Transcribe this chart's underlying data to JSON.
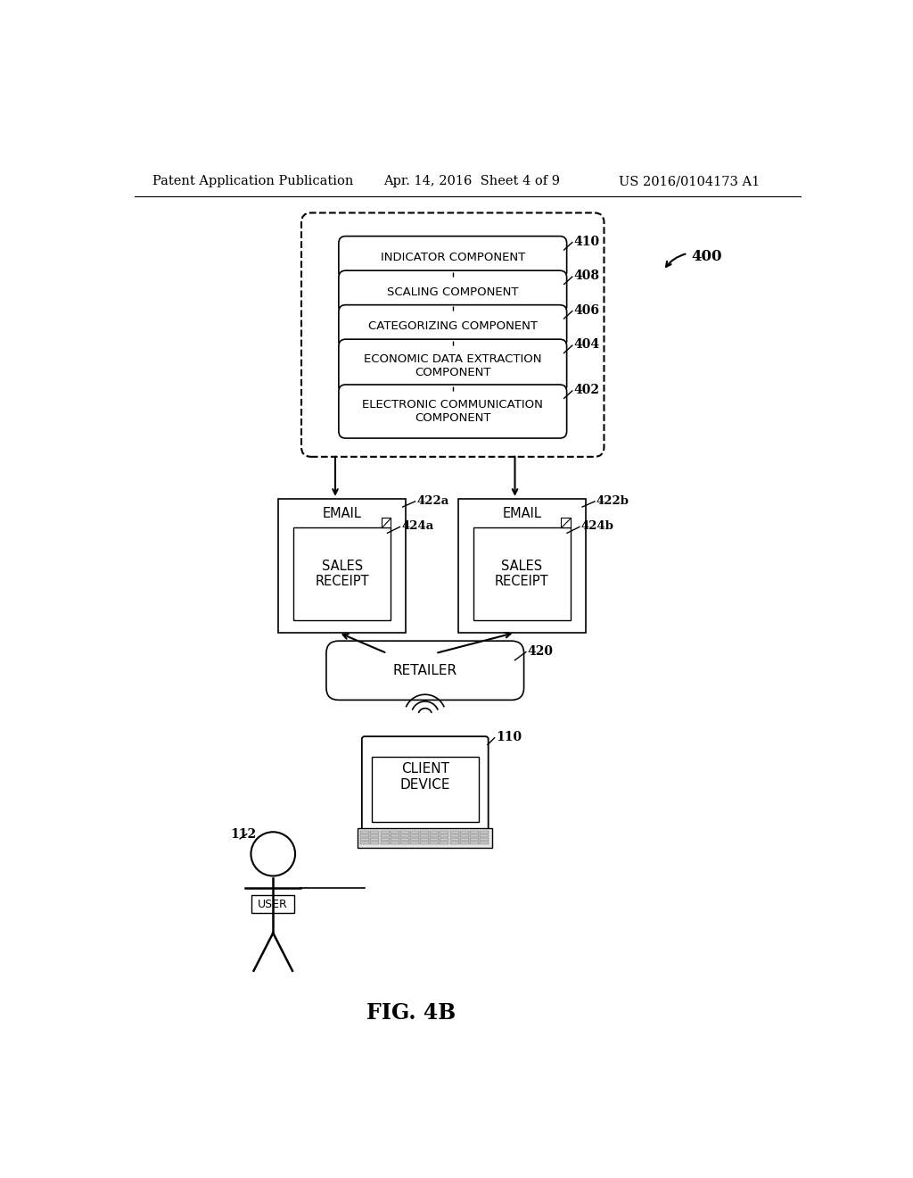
{
  "bg_color": "#ffffff",
  "header_left": "Patent Application Publication",
  "header_mid": "Apr. 14, 2016  Sheet 4 of 9",
  "header_right": "US 2016/0104173 A1",
  "fig_label": "FIG. 4B",
  "fig_number": "400",
  "components": [
    {
      "label": "INDICATOR COMPONENT",
      "number": "410",
      "two_line": false
    },
    {
      "label": "SCALING COMPONENT",
      "number": "408",
      "two_line": false
    },
    {
      "label": "CATEGORIZING COMPONENT",
      "number": "406",
      "two_line": false
    },
    {
      "label": "ECONOMIC DATA EXTRACTION\nCOMPONENT",
      "number": "404",
      "two_line": true
    },
    {
      "label": "ELECTRONIC COMMUNICATION\nCOMPONENT",
      "number": "402",
      "two_line": true
    }
  ],
  "email_left_label": "EMAIL",
  "email_right_label": "EMAIL",
  "email_left_number": "422a",
  "email_right_number": "422b",
  "receipt_left_number": "424a",
  "receipt_right_number": "424b",
  "receipt_text": "SALES\nRECEIPT",
  "retailer_label": "RETAILER",
  "retailer_number": "420",
  "client_label": "CLIENT\nDEVICE",
  "client_number": "110",
  "user_number": "112",
  "user_label": "USER"
}
